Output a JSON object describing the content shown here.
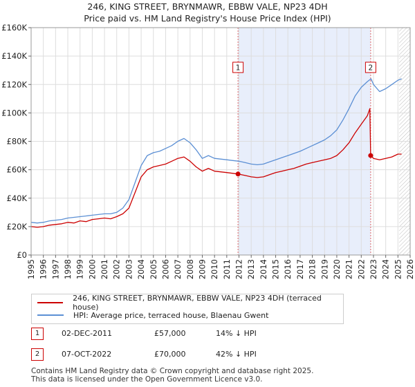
{
  "title_line1": "246, KING STREET, BRYNMAWR, EBBW VALE, NP23 4DH",
  "title_line2": "Price paid vs. HM Land Registry's House Price Index (HPI)",
  "chart_data": {
    "type": "line",
    "y_ticks": [
      {
        "value": 0,
        "label": "£0"
      },
      {
        "value": 20000,
        "label": "£20K"
      },
      {
        "value": 40000,
        "label": "£40K"
      },
      {
        "value": 60000,
        "label": "£60K"
      },
      {
        "value": 80000,
        "label": "£80K"
      },
      {
        "value": 100000,
        "label": "£100K"
      },
      {
        "value": 120000,
        "label": "£120K"
      },
      {
        "value": 140000,
        "label": "£140K"
      },
      {
        "value": 160000,
        "label": "£160K"
      }
    ],
    "x_ticks": [
      "1995",
      "1996",
      "1997",
      "1998",
      "1999",
      "2000",
      "2001",
      "2002",
      "2003",
      "2004",
      "2005",
      "2006",
      "2007",
      "2008",
      "2009",
      "2010",
      "2011",
      "2012",
      "2013",
      "2014",
      "2015",
      "2016",
      "2017",
      "2018",
      "2019",
      "2020",
      "2021",
      "2022",
      "2023",
      "2024",
      "2025",
      "2026"
    ],
    "xlim": [
      1995,
      2026
    ],
    "ylim": [
      0,
      160000
    ],
    "shaded_range": [
      2011.92,
      2022.77
    ],
    "future_hatch_from": 2025.1,
    "series": [
      {
        "name": "246, KING STREET, BRYNMAWR, EBBW VALE, NP23 4DH (terraced house)",
        "color": "#cc0000",
        "x": [
          1995.0,
          1995.5,
          1996.0,
          1996.5,
          1997.0,
          1997.5,
          1998.0,
          1998.5,
          1999.0,
          1999.5,
          2000.0,
          2000.5,
          2001.0,
          2001.5,
          2002.0,
          2002.5,
          2003.0,
          2003.5,
          2004.0,
          2004.5,
          2005.0,
          2005.5,
          2006.0,
          2006.5,
          2007.0,
          2007.5,
          2008.0,
          2008.5,
          2009.0,
          2009.5,
          2010.0,
          2010.5,
          2011.0,
          2011.5,
          2011.92,
          2012.5,
          2013.0,
          2013.5,
          2014.0,
          2014.5,
          2015.0,
          2015.5,
          2016.0,
          2016.5,
          2017.0,
          2017.5,
          2018.0,
          2018.5,
          2019.0,
          2019.5,
          2020.0,
          2020.5,
          2021.0,
          2021.5,
          2022.0,
          2022.5,
          2022.7,
          2022.77,
          2023.0,
          2023.5,
          2024.0,
          2024.5,
          2025.0,
          2025.3
        ],
        "y": [
          20000,
          19500,
          20000,
          21000,
          21500,
          22000,
          23000,
          22500,
          24000,
          23500,
          25000,
          25500,
          26000,
          25500,
          27000,
          29000,
          33000,
          44000,
          55000,
          60000,
          62000,
          63000,
          64000,
          66000,
          68000,
          69000,
          66000,
          62000,
          59000,
          61000,
          59000,
          58500,
          58000,
          57500,
          57000,
          56000,
          55000,
          54500,
          55000,
          56500,
          58000,
          59000,
          60000,
          61000,
          62500,
          64000,
          65000,
          66000,
          67000,
          68000,
          70000,
          74000,
          79000,
          86000,
          92000,
          98000,
          103000,
          70000,
          68000,
          67000,
          68000,
          69000,
          71000,
          71000
        ]
      },
      {
        "name": "HPI: Average price, terraced house, Blaenau Gwent",
        "color": "#5b8fd4",
        "x": [
          1995.0,
          1995.5,
          1996.0,
          1996.5,
          1997.0,
          1997.5,
          1998.0,
          1998.5,
          1999.0,
          1999.5,
          2000.0,
          2000.5,
          2001.0,
          2001.5,
          2002.0,
          2002.5,
          2003.0,
          2003.5,
          2004.0,
          2004.5,
          2005.0,
          2005.5,
          2006.0,
          2006.5,
          2007.0,
          2007.5,
          2008.0,
          2008.5,
          2009.0,
          2009.5,
          2010.0,
          2010.5,
          2011.0,
          2011.5,
          2012.0,
          2012.5,
          2013.0,
          2013.5,
          2014.0,
          2014.5,
          2015.0,
          2015.5,
          2016.0,
          2016.5,
          2017.0,
          2017.5,
          2018.0,
          2018.5,
          2019.0,
          2019.5,
          2020.0,
          2020.5,
          2021.0,
          2021.5,
          2022.0,
          2022.5,
          2022.8,
          2023.0,
          2023.5,
          2024.0,
          2024.5,
          2025.0,
          2025.3
        ],
        "y": [
          23000,
          22500,
          23000,
          24000,
          24500,
          25000,
          26000,
          26500,
          27000,
          27500,
          28000,
          28500,
          29000,
          29000,
          30000,
          33000,
          39000,
          51000,
          63000,
          70000,
          72000,
          73000,
          75000,
          77000,
          80000,
          82000,
          79000,
          74000,
          68000,
          70000,
          68000,
          67500,
          67000,
          66500,
          66000,
          65000,
          64000,
          63500,
          64000,
          65500,
          67000,
          68500,
          70000,
          71500,
          73000,
          75000,
          77000,
          79000,
          81000,
          84000,
          88000,
          95000,
          103000,
          112000,
          118000,
          122000,
          124000,
          120000,
          115000,
          117000,
          120000,
          123000,
          124000
        ]
      }
    ],
    "markers": [
      {
        "label": "1",
        "x": 2011.92,
        "y": 57000
      },
      {
        "label": "2",
        "x": 2022.77,
        "y": 70000
      }
    ]
  },
  "legend": {
    "property": "246, KING STREET, BRYNMAWR, EBBW VALE, NP23 4DH (terraced house)",
    "hpi": "HPI: Average price, terraced house, Blaenau Gwent"
  },
  "transactions": [
    {
      "num": "1",
      "date": "02-DEC-2011",
      "price": "£57,000",
      "hpi": "14% ↓ HPI"
    },
    {
      "num": "2",
      "date": "07-OCT-2022",
      "price": "£70,000",
      "hpi": "42% ↓ HPI"
    }
  ],
  "footer_line1": "Contains HM Land Registry data © Crown copyright and database right 2025.",
  "footer_line2": "This data is licensed under the Open Government Licence v3.0.",
  "colors": {
    "property": "#cc0000",
    "hpi": "#5b8fd4",
    "shade": "#e8eefb",
    "grid": "#dddddd"
  }
}
